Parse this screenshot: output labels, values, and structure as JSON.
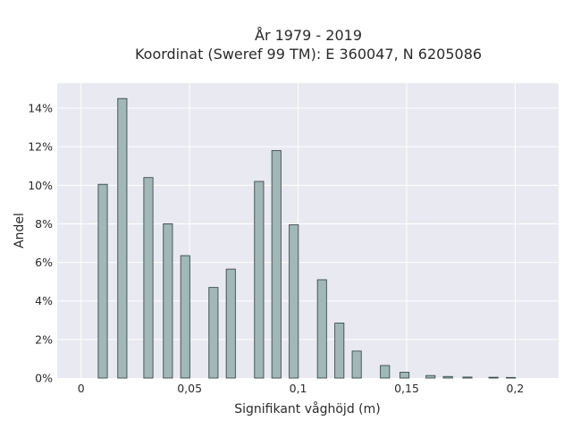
{
  "chart_data": {
    "type": "bar",
    "title_lines": [
      "År 1979 - 2019",
      "Koordinat (Sweref 99 TM): E 360047, N 6205086"
    ],
    "xlabel": "Signifikant våghöjd (m)",
    "ylabel": "Andel",
    "xlim": [
      -0.011,
      0.22
    ],
    "ylim": [
      0,
      15.3
    ],
    "x_ticks": [
      {
        "value": 0,
        "label": "0"
      },
      {
        "value": 0.05,
        "label": "0,05"
      },
      {
        "value": 0.1,
        "label": "0,1"
      },
      {
        "value": 0.15,
        "label": "0,15"
      },
      {
        "value": 0.2,
        "label": "0,2"
      }
    ],
    "y_ticks": [
      {
        "value": 0,
        "label": "0%"
      },
      {
        "value": 2,
        "label": "2%"
      },
      {
        "value": 4,
        "label": "4%"
      },
      {
        "value": 6,
        "label": "6%"
      },
      {
        "value": 8,
        "label": "8%"
      },
      {
        "value": 10,
        "label": "10%"
      },
      {
        "value": 12,
        "label": "12%"
      },
      {
        "value": 14,
        "label": "14%"
      }
    ],
    "bar_width": 0.0042,
    "x": [
      0.01,
      0.019,
      0.031,
      0.04,
      0.048,
      0.061,
      0.069,
      0.082,
      0.09,
      0.098,
      0.111,
      0.119,
      0.127,
      0.14,
      0.149,
      0.161,
      0.169,
      0.178,
      0.19,
      0.198
    ],
    "values": [
      10.05,
      14.5,
      10.4,
      8.0,
      6.35,
      4.7,
      5.65,
      10.2,
      11.8,
      7.95,
      5.1,
      2.85,
      1.4,
      0.65,
      0.3,
      0.13,
      0.08,
      0.05,
      0.04,
      0.03
    ],
    "grid": true,
    "colors": {
      "bar_fill": "#a2b8b8",
      "bar_stroke": "#3b4a4a",
      "plot_background": "#e9e9f1",
      "grid": "#ffffff"
    }
  }
}
